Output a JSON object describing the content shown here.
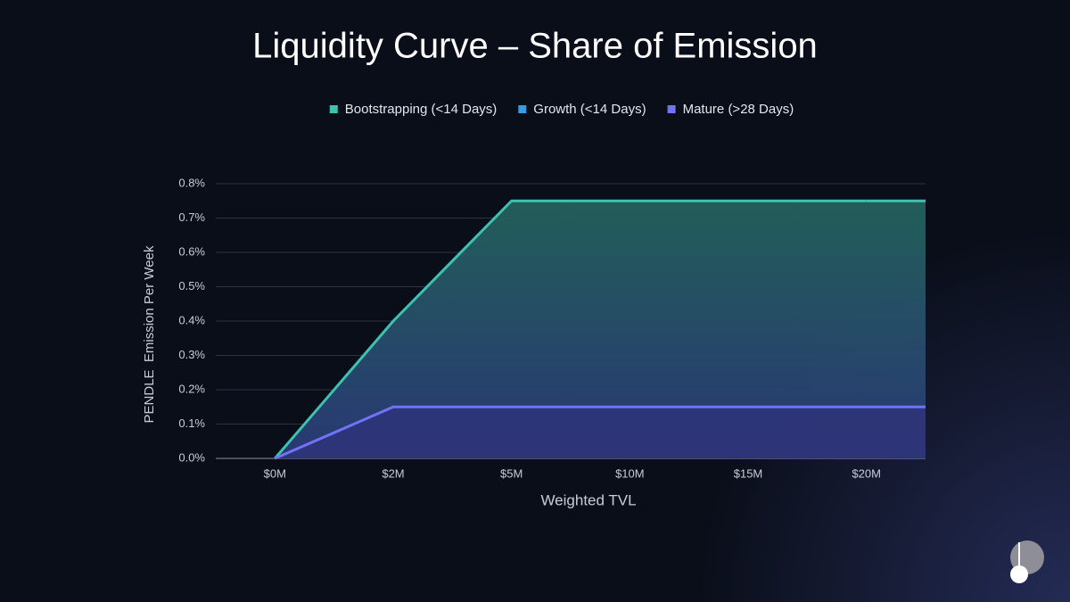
{
  "chart_data": {
    "type": "line",
    "title": "Liquidity Curve – Share of Emission",
    "xlabel": "Weighted TVL",
    "ylabel": "PENDLE  Emission Per Week",
    "categories": [
      "$0M",
      "$2M",
      "$5M",
      "$10M",
      "$15M",
      "$20M"
    ],
    "series": [
      {
        "name": "Bootstrapping (<14 Days)",
        "color": "#3fc1b0",
        "values": [
          0,
          0.4,
          0.75,
          0.75,
          0.75,
          0.75
        ]
      },
      {
        "name": "Growth (<14 Days)",
        "color": "#3b9be0",
        "values": [
          null,
          null,
          null,
          null,
          null,
          null
        ]
      },
      {
        "name": "Mature (>28 Days)",
        "color": "#6f74f6",
        "values": [
          0,
          0.15,
          0.15,
          0.15,
          0.15,
          0.15
        ]
      }
    ],
    "ylim": [
      0,
      0.8
    ],
    "yticks": [
      {
        "value": 0,
        "label": "0.0%"
      },
      {
        "value": 0.1,
        "label": "0.1%"
      },
      {
        "value": 0.2,
        "label": "0.2%"
      },
      {
        "value": 0.3,
        "label": "0.3%"
      },
      {
        "value": 0.4,
        "label": "0.4%"
      },
      {
        "value": 0.5,
        "label": "0.5%"
      },
      {
        "value": 0.6,
        "label": "0.6%"
      },
      {
        "value": 0.7,
        "label": "0.7%"
      },
      {
        "value": 0.8,
        "label": "0.8%"
      }
    ],
    "grid": true,
    "legend": "top"
  }
}
